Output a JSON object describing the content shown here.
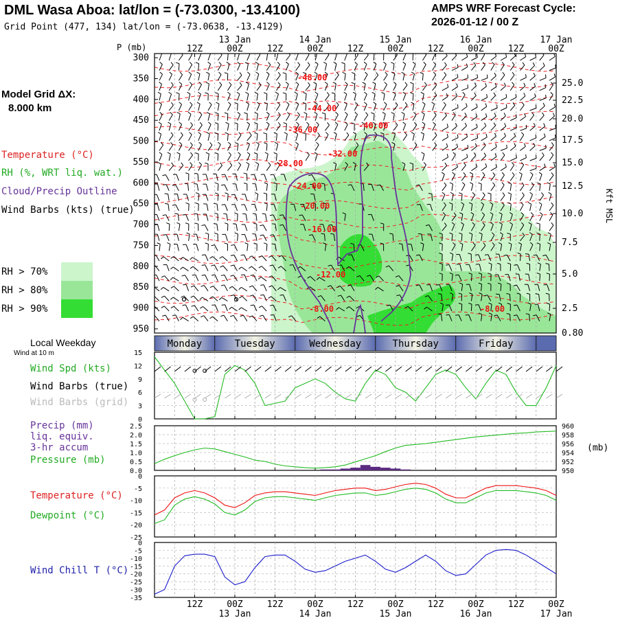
{
  "header": {
    "title": "DML Wasa Aboa:  lat/lon = (-73.0300, -13.4100)",
    "grid_point": "Grid Point (477, 134) lat/lon = (-73.0638, -13.4129)",
    "cycle_label": "AMPS WRF Forecast Cycle:",
    "cycle_value": "2026-01-12 / 00  Z"
  },
  "left_panel": {
    "model_grid_label": "Model Grid ΔX:",
    "model_grid_value": "8.000 km",
    "legend_temperature": "Temperature (°C)",
    "legend_rh": "RH (%, WRT liq. wat.)",
    "legend_cloud": "Cloud/Precip Outline",
    "legend_wind": "Wind Barbs (kts) (true)",
    "rh70": "RH > 70%",
    "rh80": "RH > 80%",
    "rh90": "RH > 90%",
    "local_weekday": "Local Weekday",
    "wind_at_10m": "Wind at 10 m",
    "wind_spd": "Wind Spd (kts)",
    "wind_barbs_true": "Wind Barbs (true)",
    "wind_barbs_grid": "Wind Barbs (grid)",
    "precip_line1": "Precip (mm)",
    "precip_line2": "liq. equiv.",
    "precip_line3": "3-hr accum",
    "pressure_label": "Pressure (mb)",
    "temp_label": "Temperature (°C)",
    "dew_label": "Dewpoint (°C)",
    "windchill_label": "Wind Chill T (°C)"
  },
  "colors": {
    "temperature": "#ff0000",
    "rh": "#33cc33",
    "cloud": "#663399",
    "rh70": "#ccf5cc",
    "rh80": "#99e699",
    "rh90": "#33dd33",
    "windchill": "#0000cc",
    "weekday_bar": "#5b6bb0"
  },
  "chart_data": [
    {
      "type": "contour",
      "title": "Time-height cross section",
      "ylabel": "P (mb)",
      "y_right_label": "Kft MSL",
      "x_hours_range": [
        0,
        120
      ],
      "top_ticks": [
        "12Z",
        "00Z",
        "12Z",
        "00Z",
        "12Z",
        "00Z",
        "12Z",
        "00Z",
        "12Z",
        "00Z"
      ],
      "date_labels": [
        "13 Jan",
        "14 Jan",
        "15 Jan",
        "16 Jan",
        "17 Jan"
      ],
      "pressure_ticks": [
        300,
        350,
        400,
        450,
        500,
        550,
        600,
        650,
        700,
        750,
        800,
        850,
        900,
        950
      ],
      "height_ticks": [
        "25.0",
        "22.5",
        "20.0",
        "17.5",
        "15.0",
        "12.5",
        "10.0",
        "7.5",
        "5.0",
        "2.5",
        "0.80"
      ],
      "temperature_contour_labels": [
        "-48.00",
        "-44.00",
        "-40.00",
        "-36.00",
        "-32.00",
        "-28.00",
        "-24.00",
        "-20.00",
        "-16.00",
        "-12.00",
        "-8.00",
        "-8.00"
      ]
    },
    {
      "type": "category",
      "title": "Local Weekday",
      "categories": [
        "Monday",
        "Tuesday",
        "Wednesday",
        "Thursday",
        "Friday"
      ]
    },
    {
      "type": "line",
      "title": "Wind Spd (kts)",
      "ylim": [
        0,
        15
      ],
      "y_ticks": [
        0,
        3,
        6,
        9,
        12,
        15
      ],
      "x_hours": [
        0,
        3,
        6,
        9,
        12,
        15,
        18,
        21,
        24,
        27,
        30,
        33,
        36,
        39,
        42,
        45,
        48,
        51,
        54,
        57,
        60,
        63,
        66,
        69,
        72,
        75,
        78,
        81,
        84,
        87,
        90,
        93,
        96,
        99,
        102,
        105,
        108,
        111,
        114,
        117,
        120
      ],
      "series": [
        {
          "name": "Wind Spd",
          "values": [
            14,
            11,
            8,
            4,
            0,
            0,
            0.5,
            10,
            12,
            11,
            8,
            3,
            3.5,
            4,
            7,
            8,
            9,
            8,
            6,
            4.5,
            4,
            8,
            11,
            10,
            7,
            6,
            4,
            7,
            10,
            11,
            10,
            7,
            4.5,
            8,
            11,
            10,
            6,
            3,
            3,
            7,
            12
          ]
        }
      ]
    },
    {
      "type": "bar_line",
      "title": "Precip / Pressure",
      "precip_ylim": [
        0,
        2.5
      ],
      "precip_ticks": [
        "2.5",
        "2.0",
        "1.5",
        "1.0",
        "0.5",
        "0.0"
      ],
      "pressure_ylim": [
        950,
        960
      ],
      "pressure_ticks": [
        "960",
        "958",
        "956",
        "954",
        "952",
        "950"
      ],
      "pressure_unit": "(mb)",
      "x_hours": [
        0,
        3,
        6,
        9,
        12,
        15,
        18,
        21,
        24,
        27,
        30,
        33,
        36,
        39,
        42,
        45,
        48,
        51,
        54,
        57,
        60,
        63,
        66,
        69,
        72,
        75,
        78,
        81,
        84,
        87,
        90,
        93,
        96,
        99,
        102,
        105,
        108,
        111,
        114,
        117,
        120
      ],
      "precip": [
        0,
        0,
        0,
        0,
        0,
        0,
        0,
        0,
        0,
        0,
        0,
        0,
        0,
        0,
        0,
        0,
        0,
        0.05,
        0.05,
        0.1,
        0.15,
        0.3,
        0.2,
        0.15,
        0.1,
        0.05,
        0,
        0,
        0,
        0,
        0,
        0,
        0,
        0,
        0,
        0,
        0,
        0,
        0,
        0,
        0
      ],
      "pressure": [
        951.5,
        952.5,
        953.3,
        954.0,
        954.6,
        955.0,
        954.8,
        954.2,
        953.6,
        953.0,
        952.3,
        952.0,
        951.4,
        951.0,
        950.8,
        950.6,
        950.5,
        950.6,
        950.8,
        951.2,
        951.9,
        952.6,
        953.3,
        954.2,
        955.0,
        955.6,
        955.8,
        956.0,
        956.3,
        956.6,
        956.9,
        957.2,
        957.5,
        957.7,
        957.9,
        958.1,
        958.3,
        958.4,
        958.6,
        958.7,
        958.8
      ]
    },
    {
      "type": "line",
      "title": "Temperature / Dewpoint",
      "ylim": [
        -25,
        0
      ],
      "y_ticks": [
        -25,
        -20,
        -15,
        -10,
        -5,
        0
      ],
      "x_hours": [
        0,
        3,
        6,
        9,
        12,
        15,
        18,
        21,
        24,
        27,
        30,
        33,
        36,
        39,
        42,
        45,
        48,
        51,
        54,
        57,
        60,
        63,
        66,
        69,
        72,
        75,
        78,
        81,
        84,
        87,
        90,
        93,
        96,
        99,
        102,
        105,
        108,
        111,
        114,
        117,
        120
      ],
      "series": [
        {
          "name": "Temperature",
          "values": [
            -16,
            -14,
            -9,
            -7,
            -6,
            -7,
            -9,
            -12,
            -13,
            -11,
            -8,
            -7,
            -6.5,
            -6.5,
            -7,
            -7.5,
            -8,
            -7,
            -6,
            -5.5,
            -5,
            -5,
            -6,
            -5.5,
            -4.5,
            -3.5,
            -3,
            -3.5,
            -5,
            -7.5,
            -9,
            -9,
            -7,
            -5,
            -4,
            -4,
            -4,
            -4.5,
            -5,
            -6,
            -8
          ]
        },
        {
          "name": "Dewpoint",
          "values": [
            -19.5,
            -18,
            -12,
            -9.5,
            -8.5,
            -9.5,
            -11.5,
            -15,
            -16,
            -14,
            -10.5,
            -9,
            -8.5,
            -8.5,
            -9,
            -9.5,
            -10,
            -9,
            -8,
            -7.5,
            -7,
            -7,
            -8,
            -7.5,
            -6.5,
            -5.5,
            -5,
            -5.5,
            -7,
            -9.5,
            -11,
            -11,
            -9,
            -7,
            -6,
            -6,
            -6,
            -6.5,
            -7,
            -8,
            -10
          ]
        }
      ]
    },
    {
      "type": "line",
      "title": "Wind Chill T (°C)",
      "ylim": [
        -35,
        0
      ],
      "y_ticks": [
        -35,
        -30,
        -25,
        -20,
        -15,
        -10,
        -5,
        0
      ],
      "x_hours": [
        0,
        3,
        6,
        9,
        12,
        15,
        18,
        21,
        24,
        27,
        30,
        33,
        36,
        39,
        42,
        45,
        48,
        51,
        54,
        57,
        60,
        63,
        66,
        69,
        72,
        75,
        78,
        81,
        84,
        87,
        90,
        93,
        96,
        99,
        102,
        105,
        108,
        111,
        114,
        117,
        120
      ],
      "series": [
        {
          "name": "Wind Chill",
          "values": [
            -33,
            -30,
            -15,
            -8.5,
            -7.5,
            -7.5,
            -9,
            -22,
            -27,
            -25,
            -16,
            -9,
            -8,
            -8,
            -12,
            -17,
            -19,
            -18,
            -15,
            -12,
            -10,
            -8,
            -12,
            -17,
            -19,
            -16,
            -12,
            -8,
            -12,
            -18,
            -21,
            -20,
            -14,
            -8,
            -5,
            -4.5,
            -5,
            -8,
            -12,
            -16,
            -20
          ]
        }
      ]
    },
    {
      "type": "axis",
      "title": "Bottom time axis",
      "ticks": [
        "12Z",
        "00Z",
        "12Z",
        "00Z",
        "12Z",
        "00Z",
        "12Z",
        "00Z",
        "12Z",
        "00Z"
      ],
      "date_labels": [
        "13 Jan",
        "14 Jan",
        "15 Jan",
        "16 Jan",
        "17 Jan"
      ]
    }
  ]
}
